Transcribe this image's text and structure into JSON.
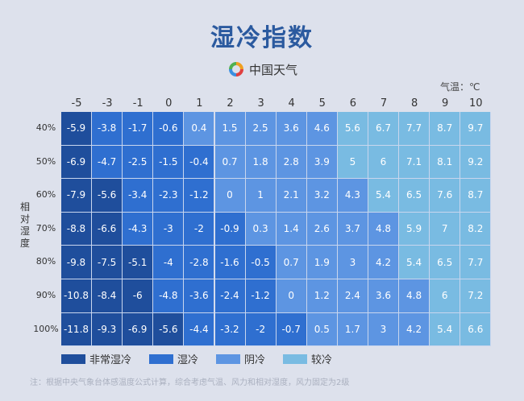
{
  "title": "湿冷指数",
  "logo_text": "中国天气",
  "chart_data": {
    "type": "heatmap",
    "title": "湿冷指数",
    "xlabel": "气温：℃",
    "ylabel": "相对湿度",
    "x": [
      "-5",
      "-3",
      "-1",
      "0",
      "1",
      "2",
      "3",
      "4",
      "5",
      "6",
      "7",
      "8",
      "9",
      "10"
    ],
    "y": [
      "40%",
      "50%",
      "60%",
      "70%",
      "80%",
      "90%",
      "100%"
    ],
    "values": [
      [
        -5.9,
        -3.8,
        -1.7,
        -0.6,
        0.4,
        1.5,
        2.5,
        3.6,
        4.6,
        5.6,
        6.7,
        7.7,
        8.7,
        9.7
      ],
      [
        -6.9,
        -4.7,
        -2.5,
        -1.5,
        -0.4,
        0.7,
        1.8,
        2.8,
        3.9,
        5,
        6,
        7.1,
        8.1,
        9.2
      ],
      [
        -7.9,
        -5.6,
        -3.4,
        -2.3,
        -1.2,
        0,
        1,
        2.1,
        3.2,
        4.3,
        5.4,
        6.5,
        7.6,
        8.7
      ],
      [
        -8.8,
        -6.6,
        -4.3,
        -3,
        -2,
        -0.9,
        0.3,
        1.4,
        2.6,
        3.7,
        4.8,
        5.9,
        7,
        8.2
      ],
      [
        -9.8,
        -7.5,
        -5.1,
        -4,
        -2.8,
        -1.6,
        -0.5,
        0.7,
        1.9,
        3,
        4.2,
        5.4,
        6.5,
        7.7
      ],
      [
        -10.8,
        -8.4,
        -6,
        -4.8,
        -3.6,
        -2.4,
        -1.2,
        0,
        1.2,
        2.4,
        3.6,
        4.8,
        6,
        7.2
      ],
      [
        -11.8,
        -9.3,
        -6.9,
        -5.6,
        -4.4,
        -3.2,
        -2,
        -0.7,
        0.5,
        1.7,
        3,
        4.2,
        5.4,
        6.6
      ]
    ],
    "legend": [
      {
        "label": "非常湿冷",
        "color": "#1f4e9c"
      },
      {
        "label": "湿冷",
        "color": "#2f6fd0"
      },
      {
        "label": "阴冷",
        "color": "#5d95e2"
      },
      {
        "label": "较冷",
        "color": "#79bbe2"
      }
    ],
    "legend_placement": "bottom"
  },
  "note": "注：根据中央气象台体感温度公式计算，综合考虑气温、风力和相对湿度，风力固定为2级"
}
